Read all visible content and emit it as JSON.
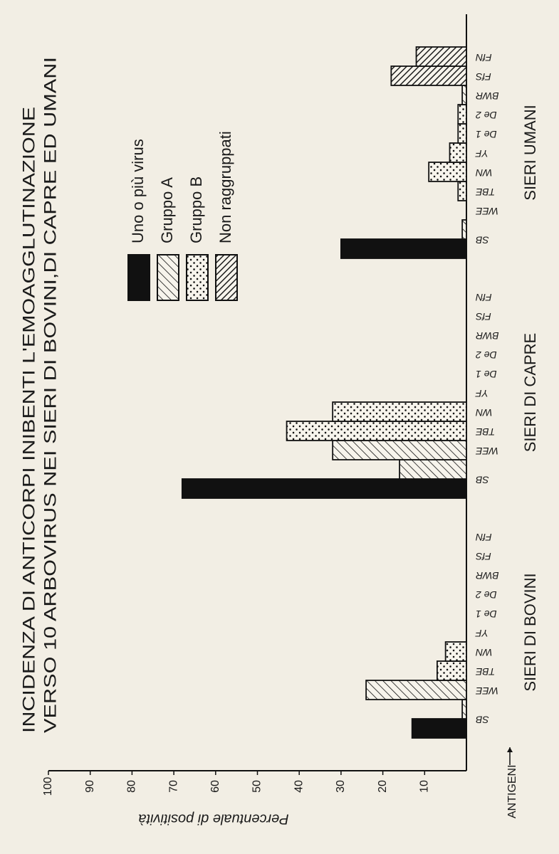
{
  "chart_data": {
    "type": "bar",
    "title": [
      "INCIDENZA DI ANTICORPI INIBENTI L'EMOAGGLUTINAZIONE",
      "VERSO 10 ARBOVIRUS NEI SIERI DI BOVINI,DI CAPRE ED UMANI"
    ],
    "xlabel": "ANTIGENI",
    "ylabel": "Percentuale di positività",
    "panels": [
      "SIERI DI BOVINI",
      "SIERI DI CAPRE",
      "SIERI UMANI"
    ],
    "categories": [
      "SB",
      "WEE",
      "TBE",
      "WN",
      "YF",
      "De 1",
      "De 2",
      "BWR",
      "FfS",
      "FfN"
    ],
    "ylim": [
      0,
      100
    ],
    "yticks": [
      10,
      20,
      30,
      40,
      50,
      60,
      70,
      80,
      90,
      100
    ],
    "series": [
      {
        "name": "Uno o più virus",
        "color": "#111111",
        "pattern": "solid",
        "values": [
          [
            13,
            null,
            null,
            null,
            null,
            null,
            null,
            null,
            null,
            null
          ],
          [
            68,
            null,
            null,
            null,
            null,
            null,
            null,
            null,
            null,
            null
          ],
          [
            30,
            null,
            null,
            null,
            null,
            null,
            null,
            null,
            null,
            null
          ]
        ]
      },
      {
        "name": "Gruppo A",
        "color": "#111111",
        "pattern": "hatch",
        "values": [
          [
            1,
            24,
            null,
            null,
            null,
            null,
            null,
            null,
            null,
            null
          ],
          [
            16,
            32,
            null,
            null,
            null,
            null,
            null,
            null,
            null,
            null
          ],
          [
            1,
            null,
            null,
            null,
            null,
            null,
            null,
            1,
            null,
            null
          ]
        ]
      },
      {
        "name": "Gruppo B",
        "color": "#111111",
        "pattern": "dots",
        "values": [
          [
            null,
            null,
            7,
            5,
            null,
            null,
            null,
            null,
            null,
            null
          ],
          [
            null,
            null,
            43,
            32,
            null,
            null,
            null,
            null,
            null,
            null
          ],
          [
            null,
            null,
            2,
            9,
            4,
            2,
            2,
            null,
            null,
            null
          ]
        ]
      },
      {
        "name": "Non raggruppati",
        "color": "#111111",
        "pattern": "dense",
        "values": [
          [
            null,
            null,
            null,
            null,
            null,
            null,
            null,
            null,
            null,
            null
          ],
          [
            null,
            null,
            null,
            null,
            null,
            null,
            null,
            null,
            null,
            null
          ],
          [
            null,
            null,
            null,
            null,
            null,
            null,
            null,
            null,
            18,
            12
          ]
        ]
      }
    ]
  }
}
